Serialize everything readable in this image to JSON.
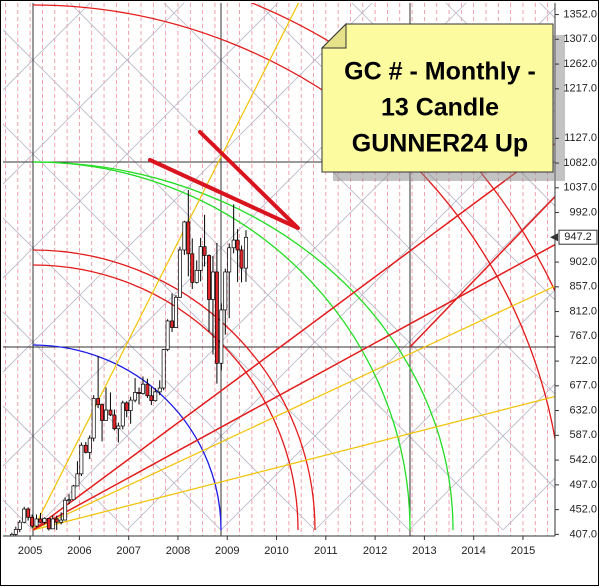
{
  "chart_data": {
    "type": "candlestick",
    "annotation_lines": [
      "GC # - Monthly -",
      "13 Candle",
      "GUNNER24 Up"
    ],
    "last_price": 947.2,
    "x": [
      2004.63,
      2004.71,
      2004.79,
      2004.88,
      2004.96,
      2005.04,
      2005.13,
      2005.21,
      2005.29,
      2005.38,
      2005.46,
      2005.54,
      2005.63,
      2005.71,
      2005.79,
      2005.88,
      2005.96,
      2006.04,
      2006.13,
      2006.21,
      2006.29,
      2006.38,
      2006.46,
      2006.54,
      2006.63,
      2006.71,
      2006.79,
      2006.88,
      2006.96,
      2007.04,
      2007.13,
      2007.21,
      2007.29,
      2007.38,
      2007.46,
      2007.54,
      2007.63,
      2007.71,
      2007.79,
      2007.88,
      2007.96,
      2008.04,
      2008.13,
      2008.21,
      2008.29,
      2008.38,
      2008.46,
      2008.54,
      2008.63,
      2008.71,
      2008.79,
      2008.88,
      2008.96,
      2009.04,
      2009.13,
      2009.21,
      2009.29,
      2009.38
    ],
    "open": [
      391,
      407,
      416,
      429,
      453,
      438,
      422,
      435,
      429,
      436,
      417,
      435,
      429,
      433,
      469,
      470,
      495,
      517,
      569,
      556,
      582,
      654,
      643,
      614,
      633,
      624,
      599,
      604,
      646,
      632,
      651,
      665,
      663,
      680,
      659,
      650,
      666,
      673,
      743,
      795,
      783,
      838,
      924,
      975,
      917,
      865,
      887,
      930,
      914,
      834,
      884,
      718,
      815,
      884,
      928,
      942,
      924,
      891
    ],
    "high": [
      410,
      421,
      433,
      457,
      456,
      443,
      443,
      446,
      438,
      437,
      441,
      441,
      447,
      474,
      480,
      497,
      540,
      574,
      575,
      587,
      660,
      731,
      645,
      674,
      665,
      634,
      610,
      650,
      649,
      657,
      691,
      674,
      694,
      690,
      675,
      673,
      687,
      744,
      798,
      845,
      842,
      930,
      977,
      1033,
      945,
      905,
      946,
      988,
      916,
      913,
      937,
      827,
      890,
      936,
      1007,
      962,
      932,
      960
    ],
    "low": [
      388,
      404,
      411,
      427,
      432,
      419,
      420,
      428,
      425,
      414,
      417,
      415,
      425,
      433,
      462,
      470,
      495,
      513,
      554,
      544,
      576,
      637,
      576,
      614,
      622,
      596,
      574,
      598,
      620,
      608,
      647,
      643,
      661,
      655,
      642,
      648,
      660,
      669,
      740,
      775,
      782,
      837,
      915,
      876,
      853,
      863,
      867,
      894,
      775,
      734,
      681,
      705,
      770,
      800,
      918,
      866,
      865,
      866
    ],
    "close": [
      407,
      416,
      429,
      453,
      438,
      422,
      435,
      429,
      436,
      417,
      435,
      429,
      433,
      469,
      470,
      495,
      517,
      569,
      556,
      582,
      654,
      643,
      614,
      633,
      624,
      599,
      604,
      646,
      632,
      651,
      665,
      663,
      680,
      659,
      650,
      666,
      673,
      743,
      795,
      783,
      838,
      924,
      975,
      917,
      865,
      887,
      930,
      914,
      834,
      884,
      718,
      815,
      884,
      928,
      942,
      924,
      891,
      947
    ],
    "up_color": "#ffffff",
    "down_color": "#e3262b",
    "outline_color": "#000000",
    "xlim": [
      2004.45,
      2015.65
    ],
    "xticks": [
      2005,
      2006,
      2007,
      2008,
      2009,
      2010,
      2011,
      2012,
      2013,
      2014,
      2015
    ],
    "ylim": [
      404,
      1373
    ],
    "yticks": [
      {
        "value": 407,
        "label": "407.0"
      },
      {
        "value": 452,
        "label": "452.0"
      },
      {
        "value": 497,
        "label": "497.0"
      },
      {
        "value": 542,
        "label": "542.0"
      },
      {
        "value": 587,
        "label": "587.0"
      },
      {
        "value": 632,
        "label": "632.0"
      },
      {
        "value": 677,
        "label": "677.0"
      },
      {
        "value": 722,
        "label": "722.0"
      },
      {
        "value": 767,
        "label": "767.0"
      },
      {
        "value": 812,
        "label": "812.0"
      },
      {
        "value": 857,
        "label": "857.0"
      },
      {
        "value": 902,
        "label": "902.0"
      },
      {
        "value": 992,
        "label": "992.0"
      },
      {
        "value": 1037,
        "label": "1037.0"
      },
      {
        "value": 1082,
        "label": "1082.0"
      },
      {
        "value": 1127,
        "label": "1127.0"
      },
      {
        "value": 1217,
        "label": "1217.0"
      },
      {
        "value": 1262,
        "label": "1262.0"
      },
      {
        "value": 1307,
        "label": "1307.0"
      },
      {
        "value": 1352,
        "label": "1352.0"
      }
    ]
  }
}
